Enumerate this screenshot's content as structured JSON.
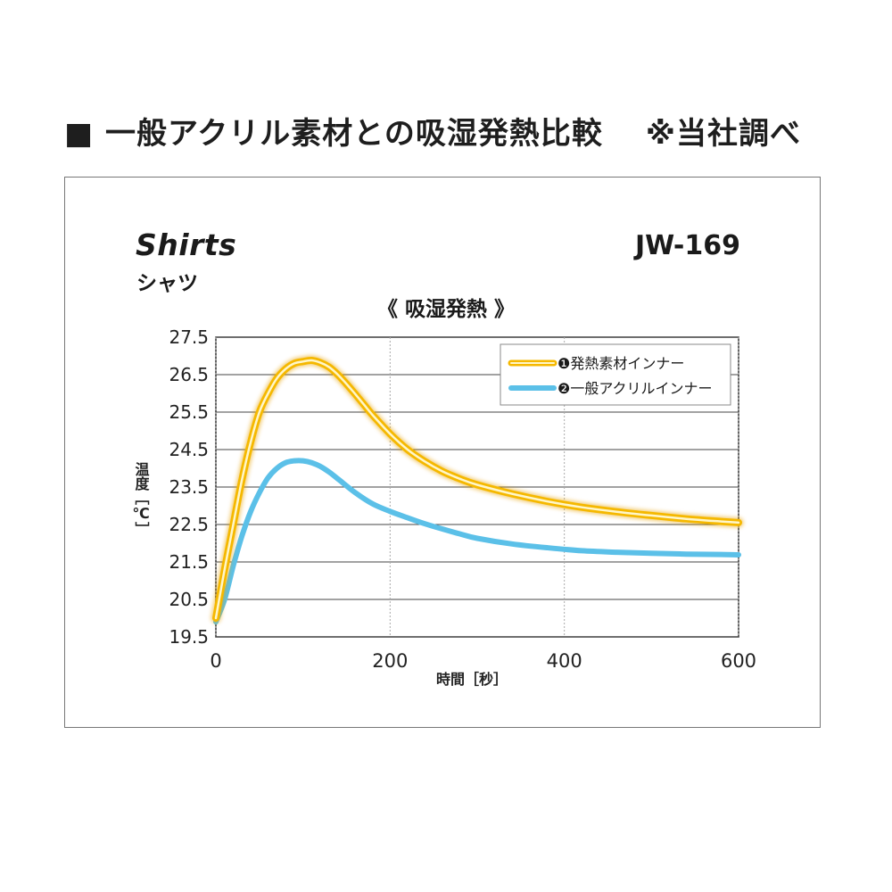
{
  "heading": {
    "main": "■ 一般アクリル素材との吸湿発熱比較",
    "note": "※当社調べ"
  },
  "product": {
    "name_en": "Shirts",
    "name_ja": "シャツ",
    "model": "JW-169"
  },
  "chart_data": {
    "type": "line",
    "title": "《 吸湿発熱 》",
    "xlabel": "時間［秒］",
    "ylabel": "温度［℃］",
    "xlim": [
      0,
      600
    ],
    "ylim": [
      19.5,
      27.5
    ],
    "x_ticks": [
      "0",
      "200",
      "400",
      "600"
    ],
    "y_ticks": [
      "27.5",
      "26.5",
      "25.5",
      "24.5",
      "23.5",
      "22.5",
      "21.5",
      "20.5",
      "19.5"
    ],
    "grid": true,
    "legend_position": "top-right",
    "series": [
      {
        "name": "❶発熱素材インナー",
        "color": "#f5b800",
        "x": [
          0,
          10,
          20,
          30,
          40,
          50,
          60,
          70,
          80,
          90,
          100,
          110,
          120,
          130,
          140,
          150,
          160,
          170,
          180,
          200,
          220,
          240,
          260,
          280,
          300,
          340,
          380,
          420,
          460,
          500,
          540,
          580,
          600
        ],
        "y": [
          20.0,
          21.3,
          22.5,
          23.7,
          24.7,
          25.5,
          26.0,
          26.4,
          26.65,
          26.8,
          26.85,
          26.88,
          26.82,
          26.7,
          26.5,
          26.25,
          25.98,
          25.7,
          25.42,
          24.92,
          24.5,
          24.18,
          23.92,
          23.72,
          23.56,
          23.32,
          23.12,
          22.96,
          22.84,
          22.74,
          22.65,
          22.58,
          22.55
        ]
      },
      {
        "name": "❷一般アクリルインナー",
        "color": "#5bc0e8",
        "x": [
          0,
          10,
          20,
          30,
          40,
          50,
          60,
          70,
          80,
          90,
          100,
          110,
          120,
          130,
          140,
          160,
          180,
          200,
          220,
          240,
          260,
          280,
          300,
          340,
          380,
          420,
          460,
          500,
          540,
          580,
          600
        ],
        "y": [
          19.9,
          20.5,
          21.4,
          22.2,
          22.85,
          23.35,
          23.75,
          24.0,
          24.15,
          24.2,
          24.2,
          24.15,
          24.05,
          23.9,
          23.72,
          23.35,
          23.05,
          22.85,
          22.68,
          22.52,
          22.38,
          22.25,
          22.13,
          21.98,
          21.88,
          21.8,
          21.76,
          21.73,
          21.71,
          21.7,
          21.69
        ]
      }
    ]
  }
}
